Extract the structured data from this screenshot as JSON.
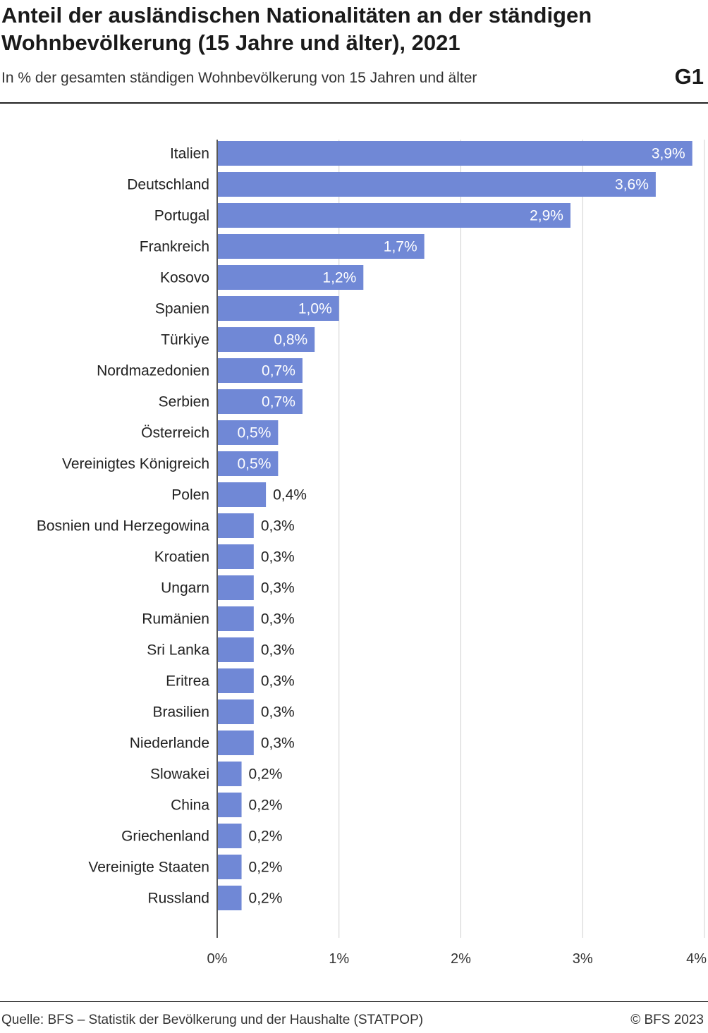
{
  "header": {
    "title": "Anteil der ausländischen Nationalitäten an der ständigen Wohnbevölkerung (15 Jahre und älter), 2021",
    "subtitle": "In % der gesamten ständigen Wohnbevölkerung von 15 Jahren und älter",
    "graphic_id": "G1"
  },
  "footer": {
    "source": "Quelle: BFS – Statistik der Bevölkerung und der Haushalte (STATPOP)",
    "copyright": "© BFS 2023"
  },
  "chart_data": {
    "type": "bar",
    "orientation": "horizontal",
    "title": "Anteil der ausländischen Nationalitäten an der ständigen Wohnbevölkerung (15 Jahre und älter), 2021",
    "xlabel": "",
    "ylabel": "",
    "xlim": [
      0,
      4
    ],
    "grid": true,
    "bar_color": "#7088d6",
    "categories": [
      "Italien",
      "Deutschland",
      "Portugal",
      "Frankreich",
      "Kosovo",
      "Spanien",
      "Türkiye",
      "Nordmazedonien",
      "Serbien",
      "Österreich",
      "Vereinigtes Königreich",
      "Polen",
      "Bosnien und Herzegowina",
      "Kroatien",
      "Ungarn",
      "Rumänien",
      "Sri Lanka",
      "Eritrea",
      "Brasilien",
      "Niederlande",
      "Slowakei",
      "China",
      "Griechenland",
      "Vereinigte Staaten",
      "Russland"
    ],
    "values": [
      3.9,
      3.6,
      2.9,
      1.7,
      1.2,
      1.0,
      0.8,
      0.7,
      0.7,
      0.5,
      0.5,
      0.4,
      0.3,
      0.3,
      0.3,
      0.3,
      0.3,
      0.3,
      0.3,
      0.3,
      0.2,
      0.2,
      0.2,
      0.2,
      0.2
    ],
    "value_labels": [
      "3,9%",
      "3,6%",
      "2,9%",
      "1,7%",
      "1,2%",
      "1,0%",
      "0,8%",
      "0,7%",
      "0,7%",
      "0,5%",
      "0,5%",
      "0,4%",
      "0,3%",
      "0,3%",
      "0,3%",
      "0,3%",
      "0,3%",
      "0,3%",
      "0,3%",
      "0,3%",
      "0,2%",
      "0,2%",
      "0,2%",
      "0,2%",
      "0,2%"
    ],
    "x_ticks": [
      0,
      1,
      2,
      3,
      4
    ],
    "x_tick_labels": [
      "0%",
      "1%",
      "2%",
      "3%",
      "4%"
    ]
  }
}
